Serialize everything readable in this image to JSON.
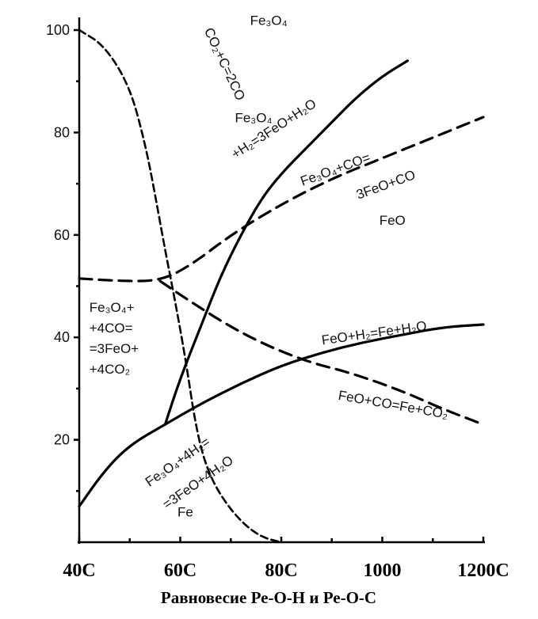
{
  "chart_data": {
    "type": "line",
    "title": "",
    "xlabel": "",
    "ylabel": "",
    "caption": "Равновесие Ре-О-Н и Ре-О-С",
    "xlim": [
      400,
      1200
    ],
    "ylim": [
      0,
      100
    ],
    "y_ticks": [
      "100",
      "80",
      "60",
      "40",
      "20"
    ],
    "x_ticks": [
      {
        "value": 400,
        "label": "40С"
      },
      {
        "value": 600,
        "label": "60С"
      },
      {
        "value": 800,
        "label": "80С"
      },
      {
        "value": 1000,
        "label": "1000"
      },
      {
        "value": 1200,
        "label": "1200С"
      }
    ],
    "minor_x_ticks": [
      500,
      700,
      900,
      1100
    ],
    "grid": false,
    "series": [
      {
        "label": "CO2+C=2CO",
        "style": "dashed",
        "points": [
          [
            400,
            100
          ],
          [
            450,
            97
          ],
          [
            500,
            89
          ],
          [
            530,
            78
          ],
          [
            550,
            68
          ],
          [
            570,
            57
          ],
          [
            590,
            47
          ],
          [
            610,
            36
          ],
          [
            630,
            23
          ],
          [
            650,
            15
          ],
          [
            680,
            9
          ],
          [
            720,
            4
          ],
          [
            760,
            1
          ],
          [
            800,
            0
          ]
        ]
      },
      {
        "label": "Fe3O4+4CO=3FeO+4CO2",
        "style": "dashed",
        "points": [
          [
            400,
            51.5
          ],
          [
            480,
            51
          ],
          [
            560,
            51
          ],
          [
            620,
            54
          ],
          [
            700,
            60
          ],
          [
            800,
            66
          ],
          [
            900,
            71
          ],
          [
            1000,
            75
          ],
          [
            1100,
            79
          ],
          [
            1200,
            83
          ]
        ]
      },
      {
        "label": "Fe3O4+4CO=3FeO+4CO2 (FeO+CO=Fe+CO2)",
        "style": "dashed",
        "points": [
          [
            560,
            51
          ],
          [
            620,
            47
          ],
          [
            700,
            42
          ],
          [
            780,
            38
          ],
          [
            860,
            35
          ],
          [
            940,
            33
          ],
          [
            1040,
            29.5
          ],
          [
            1120,
            26
          ],
          [
            1200,
            23
          ]
        ]
      },
      {
        "label": "Fe3O4+H2=3FeO+H2O",
        "style": "solid",
        "points": [
          [
            570,
            23
          ],
          [
            600,
            32
          ],
          [
            640,
            42
          ],
          [
            680,
            52
          ],
          [
            720,
            60
          ],
          [
            760,
            67
          ],
          [
            800,
            72
          ],
          [
            850,
            77
          ],
          [
            900,
            82
          ],
          [
            950,
            87
          ],
          [
            1000,
            91
          ],
          [
            1050,
            94
          ]
        ]
      },
      {
        "label": "FeO+H2=Fe+H2O",
        "style": "solid",
        "points": [
          [
            400,
            7
          ],
          [
            450,
            14
          ],
          [
            500,
            19
          ],
          [
            570,
            23
          ],
          [
            640,
            27
          ],
          [
            720,
            31
          ],
          [
            800,
            34.5
          ],
          [
            880,
            37
          ],
          [
            960,
            39
          ],
          [
            1040,
            40.5
          ],
          [
            1120,
            42
          ],
          [
            1200,
            42.5
          ]
        ]
      }
    ],
    "region_labels": [
      {
        "text": "Fe₃O₄",
        "x": 775,
        "y": 101
      },
      {
        "text": "FeO",
        "x": 1020,
        "y": 62
      },
      {
        "text": "Fe",
        "x": 610,
        "y": 5
      }
    ],
    "curve_labels": [
      {
        "text": "CO₂+C=2CO",
        "x": 680,
        "y": 93,
        "rotate": 65
      },
      {
        "text": "Fe₃O₄",
        "x": 745,
        "y": 82
      },
      {
        "text": "+H₂=3FeO+H₂O",
        "x": 790,
        "y": 80,
        "rotate": -33
      },
      {
        "text": "Fe₃O₄+CO=",
        "x": 910,
        "y": 72,
        "rotate": -20
      },
      {
        "text": "3FeO+CO",
        "x": 1010,
        "y": 69,
        "rotate": -20
      },
      {
        "text": "FeO+H₂=Fe+H₂O",
        "x": 985,
        "y": 40,
        "rotate": -8
      },
      {
        "text": "FeO+CO=Fe+CO₂",
        "x": 1020,
        "y": 26,
        "rotate": 10
      },
      {
        "text": "Fe₃O₄+4H₂=",
        "x": 600,
        "y": 15,
        "rotate": -35
      },
      {
        "text": "=3FeO+4H₂O",
        "x": 640,
        "y": 11,
        "rotate": -35
      }
    ],
    "multi_line_labels": [
      {
        "lines": [
          "Fe₃O₄+",
          "+4CO=",
          "=3FeO+",
          "+4CO₂"
        ],
        "x": 420,
        "y": 45
      }
    ]
  }
}
